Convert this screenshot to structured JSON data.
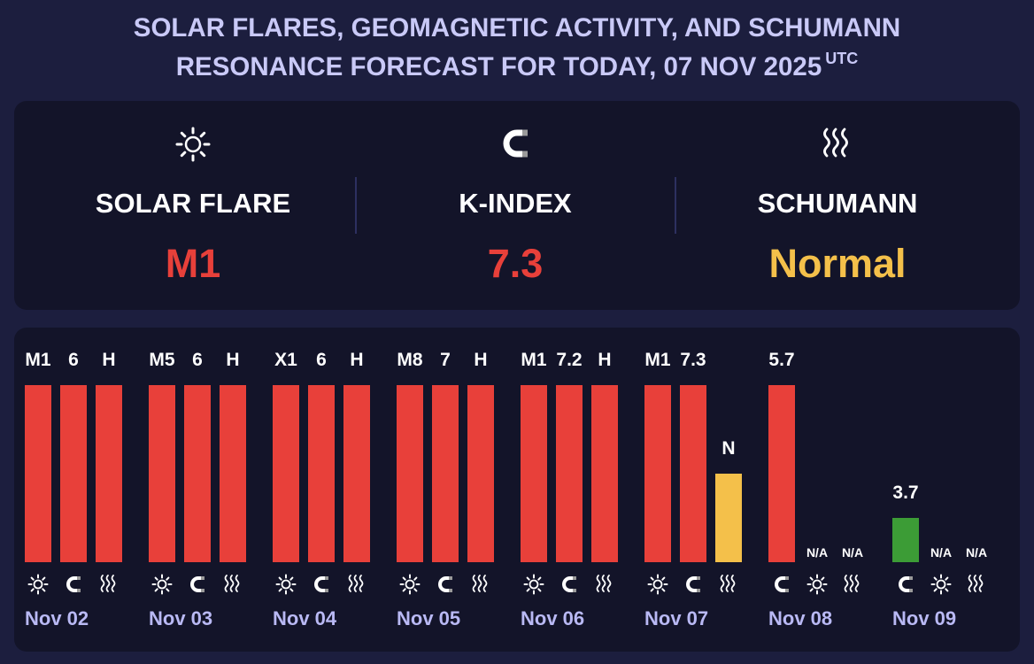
{
  "title": {
    "line1": "SOLAR FLARES, GEOMAGNETIC ACTIVITY, AND SCHUMANN",
    "line2": "RESONANCE FORECAST FOR TODAY, 07 NOV 2025",
    "utc": "UTC"
  },
  "summary": {
    "solar": {
      "label": "SOLAR FLARE",
      "value": "M1",
      "icon": "sun-icon",
      "color": "#e8403a"
    },
    "kindex": {
      "label": "K-INDEX",
      "value": "7.3",
      "icon": "magnet-icon",
      "color": "#e8403a"
    },
    "schumann": {
      "label": "SCHUMANN",
      "value": "Normal",
      "icon": "waves-icon",
      "color": "#f4c04a"
    }
  },
  "colors": {
    "high": "#e8403a",
    "normal": "#f4c04a",
    "low": "#3c9c36"
  },
  "chart_data": {
    "type": "bar",
    "days": [
      {
        "date": "Nov 02",
        "bars": [
          {
            "metric": "solar",
            "label": "M1",
            "level": 1.0,
            "color": "#e8403a"
          },
          {
            "metric": "kindex",
            "label": "6",
            "level": 1.0,
            "color": "#e8403a"
          },
          {
            "metric": "schumann",
            "label": "H",
            "level": 1.0,
            "color": "#e8403a"
          }
        ]
      },
      {
        "date": "Nov 03",
        "bars": [
          {
            "metric": "solar",
            "label": "M5",
            "level": 1.0,
            "color": "#e8403a"
          },
          {
            "metric": "kindex",
            "label": "6",
            "level": 1.0,
            "color": "#e8403a"
          },
          {
            "metric": "schumann",
            "label": "H",
            "level": 1.0,
            "color": "#e8403a"
          }
        ]
      },
      {
        "date": "Nov 04",
        "bars": [
          {
            "metric": "solar",
            "label": "X1",
            "level": 1.0,
            "color": "#e8403a"
          },
          {
            "metric": "kindex",
            "label": "6",
            "level": 1.0,
            "color": "#e8403a"
          },
          {
            "metric": "schumann",
            "label": "H",
            "level": 1.0,
            "color": "#e8403a"
          }
        ]
      },
      {
        "date": "Nov 05",
        "bars": [
          {
            "metric": "solar",
            "label": "M8",
            "level": 1.0,
            "color": "#e8403a"
          },
          {
            "metric": "kindex",
            "label": "7",
            "level": 1.0,
            "color": "#e8403a"
          },
          {
            "metric": "schumann",
            "label": "H",
            "level": 1.0,
            "color": "#e8403a"
          }
        ]
      },
      {
        "date": "Nov 06",
        "bars": [
          {
            "metric": "solar",
            "label": "M1",
            "level": 1.0,
            "color": "#e8403a"
          },
          {
            "metric": "kindex",
            "label": "7.2",
            "level": 1.0,
            "color": "#e8403a"
          },
          {
            "metric": "schumann",
            "label": "H",
            "level": 1.0,
            "color": "#e8403a"
          }
        ]
      },
      {
        "date": "Nov 07",
        "bars": [
          {
            "metric": "solar",
            "label": "M1",
            "level": 1.0,
            "color": "#e8403a"
          },
          {
            "metric": "kindex",
            "label": "7.3",
            "level": 1.0,
            "color": "#e8403a"
          },
          {
            "metric": "schumann",
            "label": "N",
            "level": 0.5,
            "color": "#f4c04a"
          }
        ]
      },
      {
        "date": "Nov 08",
        "bars": [
          {
            "metric": "kindex",
            "label": "5.7",
            "level": 1.0,
            "color": "#e8403a"
          },
          {
            "metric": "solar",
            "label": "N/A",
            "level": 0,
            "color": ""
          },
          {
            "metric": "schumann",
            "label": "N/A",
            "level": 0,
            "color": ""
          }
        ]
      },
      {
        "date": "Nov 09",
        "bars": [
          {
            "metric": "kindex",
            "label": "3.7",
            "level": 0.25,
            "color": "#3c9c36"
          },
          {
            "metric": "solar",
            "label": "N/A",
            "level": 0,
            "color": ""
          },
          {
            "metric": "schumann",
            "label": "N/A",
            "level": 0,
            "color": ""
          }
        ]
      }
    ]
  }
}
